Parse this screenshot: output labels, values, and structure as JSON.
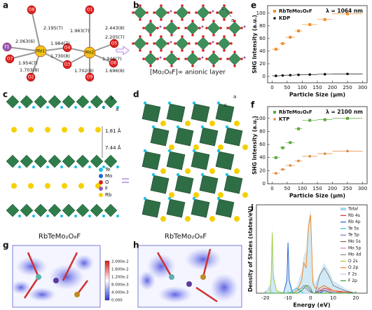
{
  "figure": {
    "labels": [
      "a",
      "b",
      "c",
      "d",
      "e",
      "f",
      "g",
      "h",
      "i"
    ],
    "a": {
      "atoms": [
        "O8",
        "F1",
        "O7",
        "O2",
        "Mo1",
        "O3",
        "O4",
        "O1",
        "Mo2",
        "O5",
        "O6",
        "O9"
      ],
      "bonds": [
        "2.195(7)",
        "2.063(6)",
        "1.984(7)",
        "1.730(8)",
        "1.954(7)",
        "1.703(8)",
        "1.963(7)",
        "2.443(8)",
        "2.205(7)",
        "1.946(7)",
        "1.702(8)",
        "1.696(8)"
      ]
    },
    "b": {
      "axes": [
        "c",
        "a"
      ],
      "caption": "[Mo₂O₈F]∞ anionic layer"
    },
    "c": {
      "axes": [
        "b",
        "c",
        "a"
      ],
      "distances": [
        "1.81 Å",
        "7.44 Å"
      ],
      "legend": [
        "Te",
        "Mo",
        "O",
        "F",
        "Rb"
      ],
      "caption": "RbTeMo₂O₈F"
    },
    "d": {
      "axes": [
        "a",
        "c"
      ],
      "caption": "RbTeMo₂O₈F"
    },
    "g": {
      "colorbar": [
        "2.000e-2",
        "1.600e-2",
        "1.200e-2",
        "8.000e-3",
        "4.000e-3",
        "0.000"
      ]
    }
  },
  "chart_data": [
    {
      "type": "scatter",
      "annotation": "λ = 1064 nm",
      "xlabel": "Particle Size (μm)",
      "ylabel": "SHG Intensity (a.u.)",
      "x": [
        12.5,
        35,
        60,
        87.5,
        125,
        175,
        250
      ],
      "xerr": [
        12.5,
        10,
        15,
        12.5,
        25,
        25,
        50
      ],
      "series": [
        {
          "name": "RbTeMo₂O₈F",
          "color": "#f28c28",
          "values": [
            43,
            52,
            62,
            72,
            82,
            90,
            99
          ]
        },
        {
          "name": "KDP",
          "color": "#111111",
          "values": [
            1,
            1.5,
            2,
            2.5,
            3,
            3.5,
            4
          ]
        }
      ],
      "xlim": [
        -15,
        315
      ],
      "ylim": [
        -10,
        112
      ],
      "xticks": [
        0,
        50,
        100,
        150,
        200,
        250,
        300
      ],
      "yticks": [
        0,
        20,
        40,
        60,
        80,
        100
      ],
      "legend": "upper left"
    },
    {
      "type": "scatter",
      "annotation": "λ = 2100 nm",
      "xlabel": "Particle Size (μm)",
      "ylabel": "SHG Intensity (a.u.)",
      "x": [
        12.5,
        35,
        60,
        87.5,
        125,
        175,
        250
      ],
      "xerr": [
        12.5,
        10,
        15,
        12.5,
        25,
        25,
        50
      ],
      "series": [
        {
          "name": "RbTeMo₂O₈F",
          "color": "#5aa83a",
          "values": [
            40,
            55,
            63,
            84,
            97,
            98,
            100
          ]
        },
        {
          "name": "KTP",
          "color": "#e0873a",
          "values": [
            16,
            22,
            28,
            35,
            42,
            46,
            50
          ]
        }
      ],
      "xlim": [
        -15,
        315
      ],
      "ylim": [
        0,
        118
      ],
      "xticks": [
        0,
        50,
        100,
        150,
        200,
        250,
        300
      ],
      "yticks": [
        0,
        20,
        40,
        60,
        80,
        100
      ],
      "legend": "upper left"
    },
    {
      "type": "line",
      "xlabel": "Energy (eV)",
      "ylabel": "Density of States (states/eV)",
      "x": [
        -20,
        -18,
        -17.5,
        -17,
        -16.5,
        -15,
        -12,
        -10.5,
        -10,
        -9.5,
        -8,
        -6,
        -4,
        -3,
        -2,
        -1,
        0,
        1,
        2,
        4,
        6,
        8,
        10,
        15,
        20
      ],
      "series": [
        {
          "name": "Total",
          "color": "#a6d4ee",
          "fill": true,
          "values": [
            0,
            3,
            9,
            27,
            9,
            1,
            0,
            7,
            22,
            7,
            1,
            3,
            9,
            15,
            17,
            29,
            33,
            7,
            4,
            8,
            12,
            9,
            5,
            2,
            0
          ]
        },
        {
          "name": "Rb 4s",
          "color": "#d62728",
          "values": [
            0,
            0,
            0,
            0,
            0,
            0,
            0,
            0,
            0,
            0,
            0,
            0,
            0,
            0,
            0,
            0,
            0,
            0,
            0,
            1,
            2,
            1.5,
            1,
            0.5,
            0
          ]
        },
        {
          "name": "Rb 4p",
          "color": "#1f5fd0",
          "values": [
            0,
            0,
            0,
            0,
            0,
            0,
            0,
            5,
            20,
            5,
            0,
            0,
            0,
            0,
            0,
            0,
            0,
            0,
            0,
            0,
            1,
            0.5,
            0,
            0,
            0
          ]
        },
        {
          "name": "Te 5s",
          "color": "#17becf",
          "values": [
            0,
            0,
            0,
            0,
            0,
            0,
            0,
            0,
            0,
            0,
            1,
            2,
            0.5,
            0,
            0,
            0,
            0,
            0,
            0,
            0.5,
            1,
            0.5,
            0,
            0,
            0
          ]
        },
        {
          "name": "Te 5p",
          "color": "#9467bd",
          "values": [
            0,
            0,
            0,
            0,
            0,
            0,
            0,
            0,
            0,
            0,
            0,
            0,
            1,
            2,
            2,
            1,
            0.5,
            0,
            0,
            2,
            3,
            2,
            1,
            0,
            0
          ]
        },
        {
          "name": "Mo 5s",
          "color": "#8c564b",
          "values": [
            0,
            0,
            0,
            0,
            0,
            0,
            0,
            0,
            0,
            0,
            0,
            0,
            0,
            0,
            0,
            0,
            0,
            0,
            0,
            1,
            1,
            0.5,
            0,
            0,
            0
          ]
        },
        {
          "name": "Mo 5p",
          "color": "#e377c2",
          "values": [
            0,
            0,
            0,
            0,
            0,
            0,
            0,
            0,
            0,
            0,
            0,
            0,
            0,
            0,
            0,
            0,
            0,
            0,
            0,
            0.5,
            1.5,
            1,
            0.5,
            0,
            0
          ]
        },
        {
          "name": "Mo 4d",
          "color": "#7f7f7f",
          "values": [
            0,
            0,
            0,
            0,
            0,
            0,
            0,
            0,
            0,
            0,
            0,
            1,
            2,
            3,
            3,
            3,
            2,
            0,
            0,
            7,
            10,
            7,
            3,
            1,
            0
          ]
        },
        {
          "name": "O 2s",
          "color": "#9acd32",
          "values": [
            0,
            0,
            6,
            24,
            6,
            1,
            0,
            0,
            0,
            0,
            0,
            0,
            0,
            0,
            0,
            0,
            0,
            0,
            0,
            0,
            0,
            0,
            0,
            0,
            0
          ]
        },
        {
          "name": "O 2p",
          "color": "#ff7f0e",
          "values": [
            0,
            0,
            0,
            0,
            0,
            0,
            0,
            0,
            0,
            0,
            0,
            1,
            5,
            12,
            10,
            26,
            31,
            4,
            2,
            2,
            3,
            2,
            1,
            0,
            0
          ]
        },
        {
          "name": "F 2s",
          "color": "#aec7e8",
          "values": [
            0,
            3,
            1,
            0,
            0,
            0,
            0,
            0,
            0,
            0,
            0,
            0,
            0,
            0,
            0,
            0,
            0,
            0,
            0,
            0,
            0,
            0,
            0,
            0,
            0
          ]
        },
        {
          "name": "F 2p",
          "color": "#2ca02c",
          "values": [
            0,
            0,
            0,
            0,
            0,
            0,
            0,
            0,
            0,
            0,
            0,
            0,
            1,
            2,
            3,
            2,
            1,
            0,
            0,
            0,
            0,
            0,
            0,
            0,
            0
          ]
        }
      ],
      "xlim": [
        -24,
        25
      ],
      "ylim": [
        0,
        35
      ],
      "xticks": [
        -20,
        -10,
        0,
        10,
        20
      ],
      "legend": "upper right"
    }
  ]
}
